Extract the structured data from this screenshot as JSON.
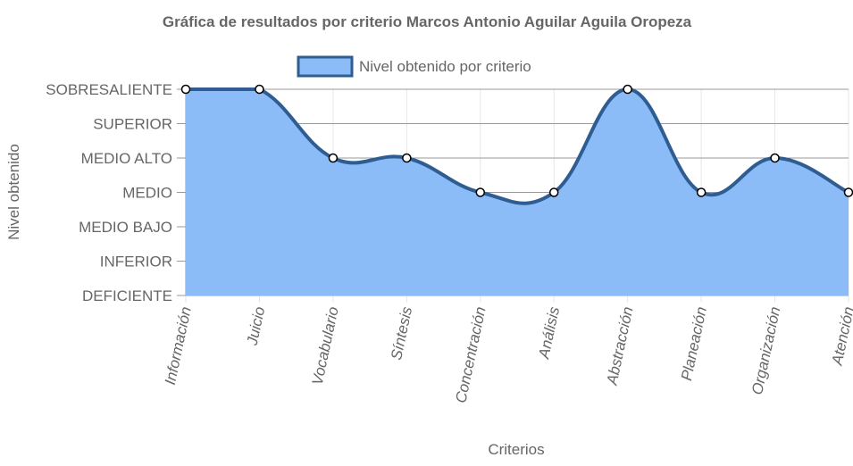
{
  "chart_data": {
    "type": "area",
    "title": "Gráfica de resultados por criterio Marcos Antonio Aguilar Aguila Oropeza",
    "xlabel": "Criterios",
    "ylabel": "Nivel obtenido",
    "categories": [
      "Información",
      "Juicio",
      "Vocabulario",
      "Síntesis",
      "Concentración",
      "Análisis",
      "Abstracción",
      "Planeación",
      "Organización",
      "Atención"
    ],
    "y_levels": [
      "DEFICIENTE",
      "INFERIOR",
      "MEDIO BAJO",
      "MEDIO",
      "MEDIO ALTO",
      "SUPERIOR",
      "SOBRESALIENTE"
    ],
    "ylim": [
      0,
      6
    ],
    "series": [
      {
        "name": "Nivel obtenido por criterio",
        "values": [
          6,
          6,
          4,
          4,
          3,
          3,
          6,
          3,
          4,
          3
        ],
        "value_labels": [
          "SOBRESALIENTE",
          "SOBRESALIENTE",
          "MEDIO ALTO",
          "MEDIO ALTO",
          "MEDIO",
          "MEDIO",
          "SOBRESALIENTE",
          "MEDIO",
          "MEDIO ALTO",
          "MEDIO"
        ]
      }
    ],
    "legend_position": "top",
    "grid": true,
    "colors": {
      "fill": "#8bbcf7",
      "line": "#2f5d91",
      "point_fill": "#ffffff",
      "grid": "#e6e6e6",
      "axis": "#999999",
      "text": "#666666"
    }
  }
}
